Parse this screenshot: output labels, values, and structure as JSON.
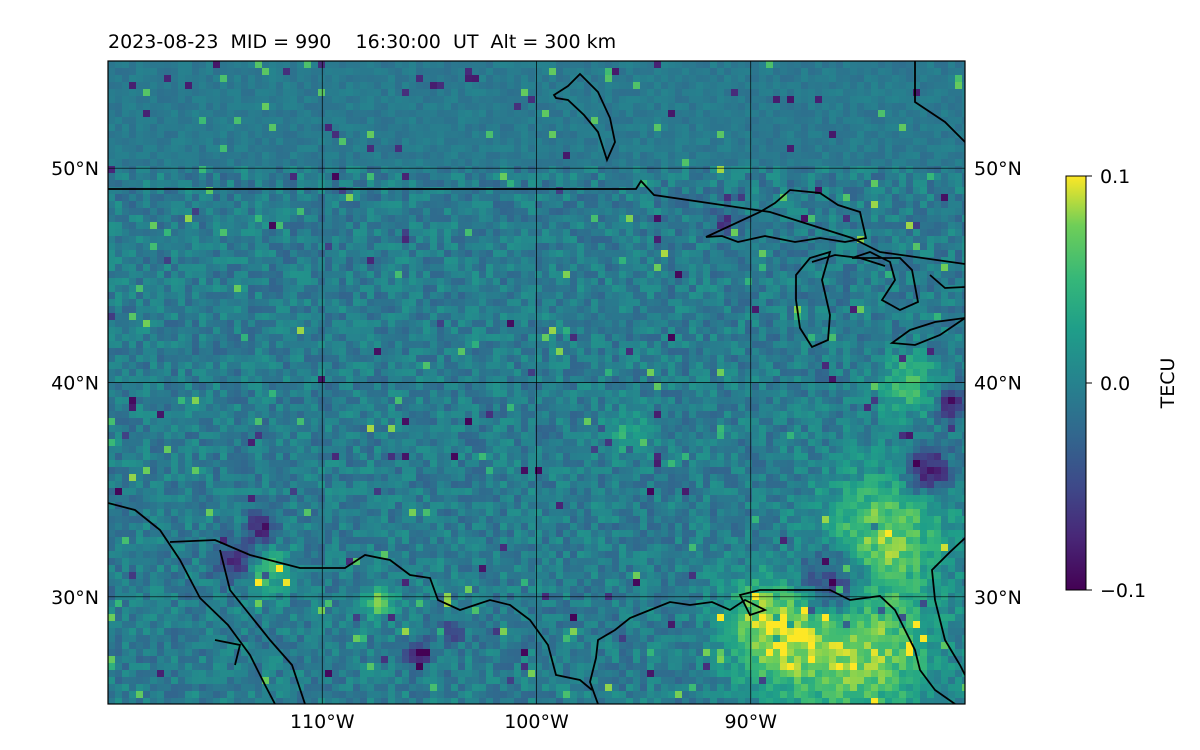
{
  "title": "2023-08-23  MID = 990    16:30:00  UT  Alt = 300 km",
  "chart_data": {
    "type": "heatmap",
    "title": "2023-08-23  MID = 990    16:30:00  UT  Alt = 300 km",
    "x_ticks": [
      {
        "value": -110,
        "label": "110°W"
      },
      {
        "value": -100,
        "label": "100°W"
      },
      {
        "value": -90,
        "label": "90°W"
      }
    ],
    "y_ticks": [
      {
        "value": 30,
        "label": "30°N"
      },
      {
        "value": 40,
        "label": "40°N"
      },
      {
        "value": 50,
        "label": "50°N"
      }
    ],
    "lon_range": [
      -120,
      -80
    ],
    "lat_range": [
      25,
      55
    ],
    "grid": true,
    "colormap": "viridis",
    "colorbar": {
      "label": "TECU",
      "min": -0.1,
      "max": 0.1,
      "ticks": [
        {
          "value": 0.1,
          "label": "0.1"
        },
        {
          "value": 0.0,
          "label": "0.0"
        },
        {
          "value": -0.1,
          "label": "−0.1"
        }
      ]
    },
    "field_notes": "Mostly near-zero perturbation (teal/green) with positive patches (yellow) over the Gulf coast/southeast and Arizona–New Mexico, negative patches (purple) near Arizona, east Texas and the southeast US interior."
  }
}
